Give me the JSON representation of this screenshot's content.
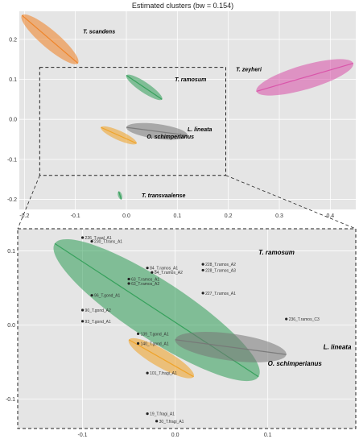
{
  "chart_data": [
    {
      "type": "scatter",
      "panel": "overview",
      "title": "Estimated clusters (bw = 0.154)",
      "xlabel": "",
      "ylabel": "",
      "xlim": [
        -0.21,
        0.45
      ],
      "ylim": [
        -0.225,
        0.27
      ],
      "x_ticks": [
        {
          "v": -0.2,
          "label": "-0.2"
        },
        {
          "v": -0.1,
          "label": "-0.1"
        },
        {
          "v": 0.0,
          "label": "0.0"
        },
        {
          "v": 0.1,
          "label": "0.1"
        },
        {
          "v": 0.2,
          "label": "0.2"
        },
        {
          "v": 0.3,
          "label": "0.3"
        },
        {
          "v": 0.4,
          "label": "0.4"
        }
      ],
      "y_ticks": [
        {
          "v": 0.2,
          "label": "0.2"
        },
        {
          "v": 0.1,
          "label": "0.1"
        },
        {
          "v": 0.0,
          "label": "0.0"
        },
        {
          "v": -0.1,
          "label": "-0.1"
        },
        {
          "v": -0.2,
          "label": "-0.2"
        }
      ],
      "grid": true,
      "zoom_box": {
        "x": [
          -0.17,
          0.195
        ],
        "y": [
          -0.14,
          0.13
        ]
      },
      "clusters": [
        {
          "name": "T. scandens",
          "color": "#f07f20",
          "x": [
            -0.205,
            -0.095
          ],
          "y": [
            0.26,
            0.14
          ]
        },
        {
          "name": "T. ramosum",
          "color": "#2e9d55",
          "x": [
            0.0,
            0.07
          ],
          "y": [
            0.11,
            0.05
          ]
        },
        {
          "name": "T. zeyheri",
          "color": "#d94fa7",
          "x": [
            0.255,
            0.445
          ],
          "y": [
            0.07,
            0.14
          ]
        },
        {
          "name": "L. lineata",
          "color": "#777777",
          "x": [
            0.0,
            0.12
          ],
          "y": [
            -0.02,
            -0.04
          ]
        },
        {
          "name": "O. schimperianus",
          "color": "#f0a020",
          "x": [
            -0.05,
            0.02
          ],
          "y": [
            -0.02,
            -0.06
          ]
        },
        {
          "name": "T. transvaalense",
          "color": "#2e9d55",
          "x": [
            -0.015,
            -0.01
          ],
          "y": [
            -0.18,
            -0.2
          ]
        }
      ],
      "annotations": [
        {
          "label": "T. scandens",
          "x": -0.085,
          "y": 0.215
        },
        {
          "label": "T. ramosum",
          "x": 0.095,
          "y": 0.095
        },
        {
          "label": "T. zeyheri",
          "x": 0.215,
          "y": 0.12
        },
        {
          "label": "L. lineata",
          "x": 0.12,
          "y": -0.03
        },
        {
          "label": "O. schimperianus",
          "x": 0.04,
          "y": -0.048
        },
        {
          "label": "T. transvaalense",
          "x": 0.03,
          "y": -0.195
        }
      ]
    },
    {
      "type": "scatter",
      "panel": "zoom",
      "title": "",
      "xlabel": "",
      "ylabel": "",
      "xlim": [
        -0.17,
        0.195
      ],
      "ylim": [
        -0.14,
        0.13
      ],
      "x_ticks": [
        {
          "v": -0.1,
          "label": "-0.1"
        },
        {
          "v": 0.0,
          "label": "0.0"
        },
        {
          "v": 0.1,
          "label": "0.1"
        }
      ],
      "y_ticks": [
        {
          "v": 0.1,
          "label": "0.1"
        },
        {
          "v": 0.0,
          "label": "0.0"
        },
        {
          "v": -0.1,
          "label": "-0.1"
        }
      ],
      "grid": true,
      "clusters": [
        {
          "name": "T. ramosum",
          "color": "#2e9d55",
          "x": [
            -0.13,
            0.09
          ],
          "y": [
            0.11,
            -0.07
          ]
        },
        {
          "name": "L. lineata",
          "color": "#777777",
          "x": [
            0.0,
            0.12
          ],
          "y": [
            -0.02,
            -0.04
          ]
        },
        {
          "name": "O. schimperianus",
          "color": "#f0a020",
          "x": [
            -0.05,
            0.02
          ],
          "y": [
            -0.02,
            -0.07
          ]
        }
      ],
      "annotations": [
        {
          "label": "T. ramosum",
          "x": 0.09,
          "y": 0.095
        },
        {
          "label": "L. lineata",
          "x": 0.16,
          "y": -0.033
        },
        {
          "label": "O. schimperianus",
          "x": 0.1,
          "y": -0.055
        }
      ],
      "point_labels": [
        {
          "label": "226_T.vaal_A1",
          "x": -0.1,
          "y": 0.118
        },
        {
          "label": "230_T.trans_A1",
          "x": -0.09,
          "y": 0.113
        },
        {
          "label": "228_T.ramos_A2",
          "x": 0.03,
          "y": 0.082
        },
        {
          "label": "228_T.ramos_A3",
          "x": 0.03,
          "y": 0.074
        },
        {
          "label": "227_T.ramos_A1",
          "x": 0.03,
          "y": 0.043
        },
        {
          "label": "84_T.ramos_A1",
          "x": -0.03,
          "y": 0.077
        },
        {
          "label": "84_T.ramos_A2",
          "x": -0.025,
          "y": 0.071
        },
        {
          "label": "63_T.ramos_A1",
          "x": -0.05,
          "y": 0.062
        },
        {
          "label": "63_T.ramos_A2",
          "x": -0.05,
          "y": 0.056
        },
        {
          "label": "96_T.gond_A1",
          "x": -0.09,
          "y": 0.04
        },
        {
          "label": "90_T.gond_A2",
          "x": -0.1,
          "y": 0.02
        },
        {
          "label": "93_T.gond_A1",
          "x": -0.1,
          "y": 0.005
        },
        {
          "label": "139_T.gond_A1",
          "x": -0.04,
          "y": -0.012
        },
        {
          "label": "140_T.gond_A1",
          "x": -0.04,
          "y": -0.025
        },
        {
          "label": "236_T.ramos_C3",
          "x": 0.12,
          "y": 0.008
        },
        {
          "label": "101_T.fragi_A1",
          "x": -0.03,
          "y": -0.065
        },
        {
          "label": "19_T.fragi_A1",
          "x": -0.03,
          "y": -0.12
        },
        {
          "label": "30_T.fragi_A1",
          "x": -0.02,
          "y": -0.13
        }
      ]
    }
  ]
}
